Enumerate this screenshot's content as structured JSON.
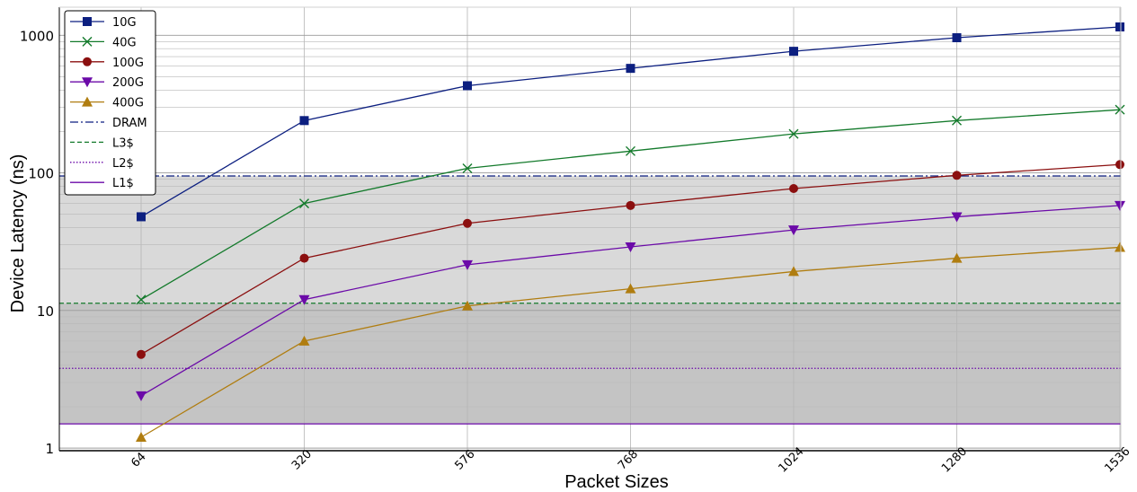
{
  "chart_data": {
    "type": "line",
    "xlabel": "Packet Sizes",
    "ylabel": "Device Latency (ns)",
    "yscale": "log",
    "ylim": [
      0.8,
      1600
    ],
    "yticks": [
      1,
      10,
      100,
      1000
    ],
    "ytick_labels": [
      "1",
      "10",
      "100",
      "1000"
    ],
    "categories": [
      "64",
      "320",
      "576",
      "768",
      "1024",
      "1280",
      "1536"
    ],
    "grid": true,
    "legend_position": "top-left",
    "series": [
      {
        "name": "10G",
        "color": "#0c1f80",
        "marker": "square",
        "values": [
          48,
          240,
          430,
          575,
          765,
          960,
          1150
        ]
      },
      {
        "name": "40G",
        "color": "#137a2b",
        "marker": "x",
        "values": [
          12,
          60,
          108,
          144,
          192,
          240,
          288
        ]
      },
      {
        "name": "100G",
        "color": "#8b0f0f",
        "marker": "circle",
        "values": [
          4.8,
          24,
          43,
          58,
          77,
          96,
          115
        ]
      },
      {
        "name": "200G",
        "color": "#6b0aa8",
        "marker": "triangle-down",
        "values": [
          2.4,
          12,
          21.5,
          29,
          38.5,
          48,
          58
        ]
      },
      {
        "name": "400G",
        "color": "#b07d10",
        "marker": "triangle-up",
        "values": [
          1.2,
          6,
          10.8,
          14.4,
          19.2,
          24,
          28.8
        ]
      }
    ],
    "reference_lines": [
      {
        "name": "DRAM",
        "value": 95,
        "color": "#0c1f80",
        "style": "dashdot"
      },
      {
        "name": "L3$",
        "value": 11.3,
        "color": "#137a2b",
        "style": "dashed"
      },
      {
        "name": "L2$",
        "value": 3.8,
        "color": "#6b0aa8",
        "style": "dotted"
      },
      {
        "name": "L1$",
        "value": 1.5,
        "color": "#6b0aa8",
        "style": "solid"
      }
    ],
    "shaded_bands": [
      {
        "from": 11.3,
        "to": 95,
        "color": "#d9d9d9"
      },
      {
        "from": 1.5,
        "to": 11.3,
        "color": "#c4c4c4"
      }
    ]
  }
}
